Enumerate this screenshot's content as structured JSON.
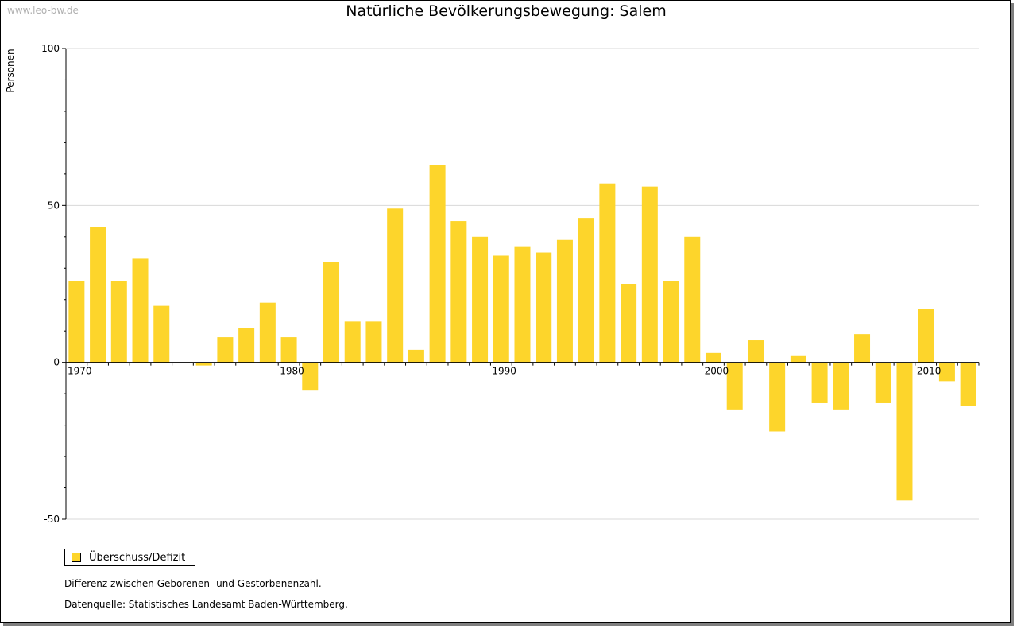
{
  "watermark": "www.leo-bw.de",
  "colors": {
    "bar": "#fdd52b",
    "grid": "#d8d8d8",
    "axis": "#000000"
  },
  "chart_data": {
    "type": "bar",
    "title": "Natürliche Bevölkerungsbewegung: Salem",
    "ylabel": "Personen",
    "xlabel": "",
    "ylim": [
      -50,
      100
    ],
    "yticks": [
      -50,
      0,
      50,
      100
    ],
    "xtick_labels": [
      "1970",
      "1980",
      "1990",
      "2000",
      "2010"
    ],
    "grid": true,
    "legend_position": "bottom-left",
    "categories": [
      1970,
      1971,
      1972,
      1973,
      1974,
      1975,
      1976,
      1977,
      1978,
      1979,
      1980,
      1981,
      1982,
      1983,
      1984,
      1985,
      1986,
      1987,
      1988,
      1989,
      1990,
      1991,
      1992,
      1993,
      1994,
      1995,
      1996,
      1997,
      1998,
      1999,
      2000,
      2001,
      2002,
      2003,
      2004,
      2005,
      2006,
      2007,
      2008,
      2009,
      2010,
      2011,
      2012
    ],
    "series": [
      {
        "name": "Überschuss/Defizit",
        "values": [
          26,
          43,
          26,
          33,
          18,
          0,
          -1,
          8,
          11,
          19,
          8,
          -9,
          32,
          13,
          13,
          49,
          4,
          63,
          45,
          40,
          34,
          37,
          35,
          39,
          46,
          57,
          25,
          56,
          26,
          40,
          3,
          -15,
          7,
          -22,
          2,
          -13,
          -15,
          9,
          -13,
          -44,
          17,
          -6,
          -14
        ]
      }
    ]
  },
  "notes": {
    "description": "Differenz zwischen Geborenen- und Gestorbenenzahl.",
    "source": "Datenquelle: Statistisches Landesamt Baden-Württemberg."
  }
}
